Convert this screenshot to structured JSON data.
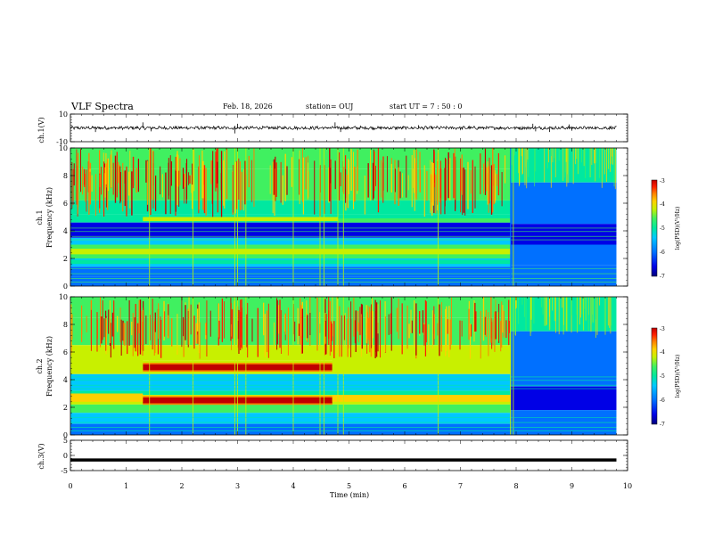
{
  "header": {
    "title": "VLF Spectra",
    "date": "Feb. 18, 2026",
    "station": "station= OUJ",
    "start": "start  UT  =   7 : 50 : 0"
  },
  "chart_data": {
    "type": "heatmap",
    "xlabel": "Time  (min)",
    "xlim": [
      0,
      10
    ],
    "x_ticks": [
      "0",
      "1",
      "2",
      "3",
      "4",
      "5",
      "6",
      "7",
      "8",
      "9",
      "10"
    ],
    "panels": [
      {
        "id": "ch1_waveform",
        "type": "line",
        "ylabel": "ch.1(V)",
        "ylim": [
          -10,
          10
        ],
        "y_ticks": [
          "10",
          "-10"
        ],
        "baseline": 0,
        "amplitude": 1.5,
        "spikes": [
          [
            0.45,
            -3
          ],
          [
            1.3,
            4
          ],
          [
            1.45,
            -2.5
          ],
          [
            2.95,
            -4
          ],
          [
            3.0,
            3
          ],
          [
            4.75,
            4
          ],
          [
            4.85,
            -3
          ],
          [
            6.25,
            2
          ],
          [
            8.3,
            3
          ],
          [
            8.35,
            -2.5
          ],
          [
            8.6,
            -3
          ],
          [
            8.95,
            2.5
          ],
          [
            9.0,
            -2
          ]
        ]
      },
      {
        "id": "ch1_spectrogram",
        "type": "heatmap",
        "ylabel": "ch.1",
        "ylabel2": "Frequency  (kHz)",
        "ylim": [
          0,
          10
        ],
        "y_ticks": [
          "0",
          "2",
          "4",
          "6",
          "8",
          "10"
        ],
        "colorbar": {
          "label": "log(PSD)(V²/Hz)",
          "range": [
            -7,
            -3
          ],
          "ticks": [
            "-3",
            "-4",
            "-5",
            "-6",
            "-7"
          ]
        },
        "regime_change_min": 7.9,
        "bands_kHz": [
          0.5,
          1.8,
          2.5,
          4.3,
          5.0
        ]
      },
      {
        "id": "ch2_spectrogram",
        "type": "heatmap",
        "ylabel": "ch.2",
        "ylabel2": "Frequency  (kHz)",
        "ylim": [
          0,
          10
        ],
        "y_ticks": [
          "0",
          "2",
          "4",
          "6",
          "8",
          "10"
        ],
        "colorbar": {
          "label": "log(PSD)(V²/Hz)",
          "range": [
            -7,
            -3
          ],
          "ticks": [
            "-3",
            "-4",
            "-5",
            "-6",
            "-7"
          ]
        },
        "regime_change_min": 7.9,
        "interference_lines_kHz": [
          2.5,
          4.9
        ],
        "interference_interval_min": [
          1.3,
          4.7
        ]
      },
      {
        "id": "ch3_waveform",
        "type": "line",
        "ylabel": "ch.3(V)",
        "ylim": [
          -5,
          5
        ],
        "y_ticks": [
          "5",
          "0",
          "-5"
        ],
        "baseline": -1.5
      }
    ],
    "colors": {
      "c1": "#00007a",
      "c2": "#0000e6",
      "c3": "#0070ff",
      "c4": "#00c8ff",
      "c5": "#00e8a0",
      "c6": "#40f060",
      "c7": "#c8f000",
      "c8": "#ffd000",
      "c9": "#ff8000",
      "c10": "#ff2000",
      "c11": "#c00000"
    }
  }
}
